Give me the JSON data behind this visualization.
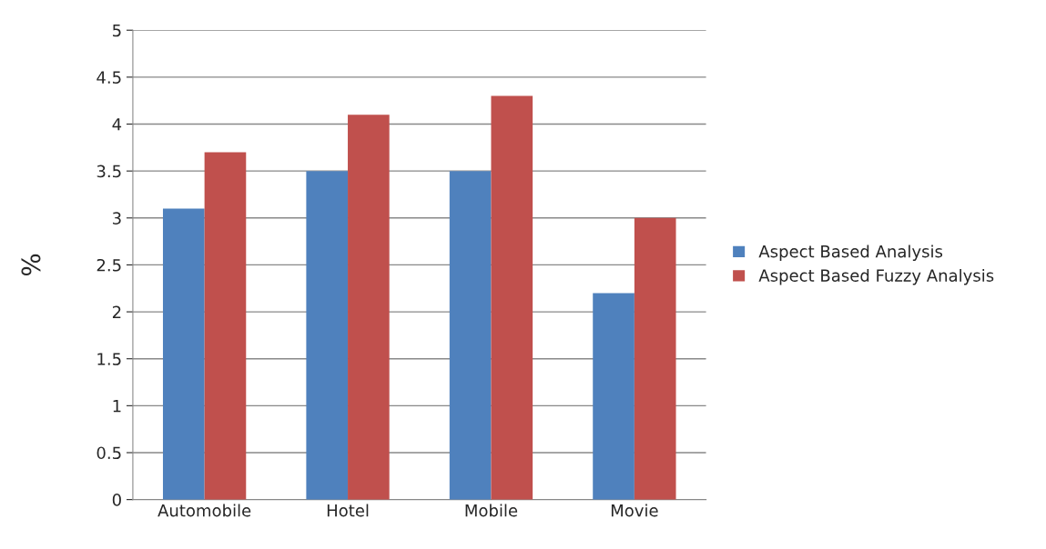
{
  "chart_data": {
    "type": "bar",
    "ylabel": "%",
    "categories": [
      "Automobile",
      "Hotel",
      "Mobile",
      "Movie"
    ],
    "series": [
      {
        "name": "Aspect Based Analysis",
        "color": "#4f81bd",
        "values": [
          3.1,
          3.5,
          3.5,
          2.2
        ]
      },
      {
        "name": "Aspect Based Fuzzy Analysis",
        "color": "#c0504d",
        "values": [
          3.7,
          4.1,
          4.3,
          3.0
        ]
      }
    ],
    "ylim": [
      0,
      5
    ],
    "yticks": [
      0,
      0.5,
      1,
      1.5,
      2,
      2.5,
      3,
      3.5,
      4,
      4.5,
      5
    ],
    "grid": "y",
    "legend": "right"
  }
}
